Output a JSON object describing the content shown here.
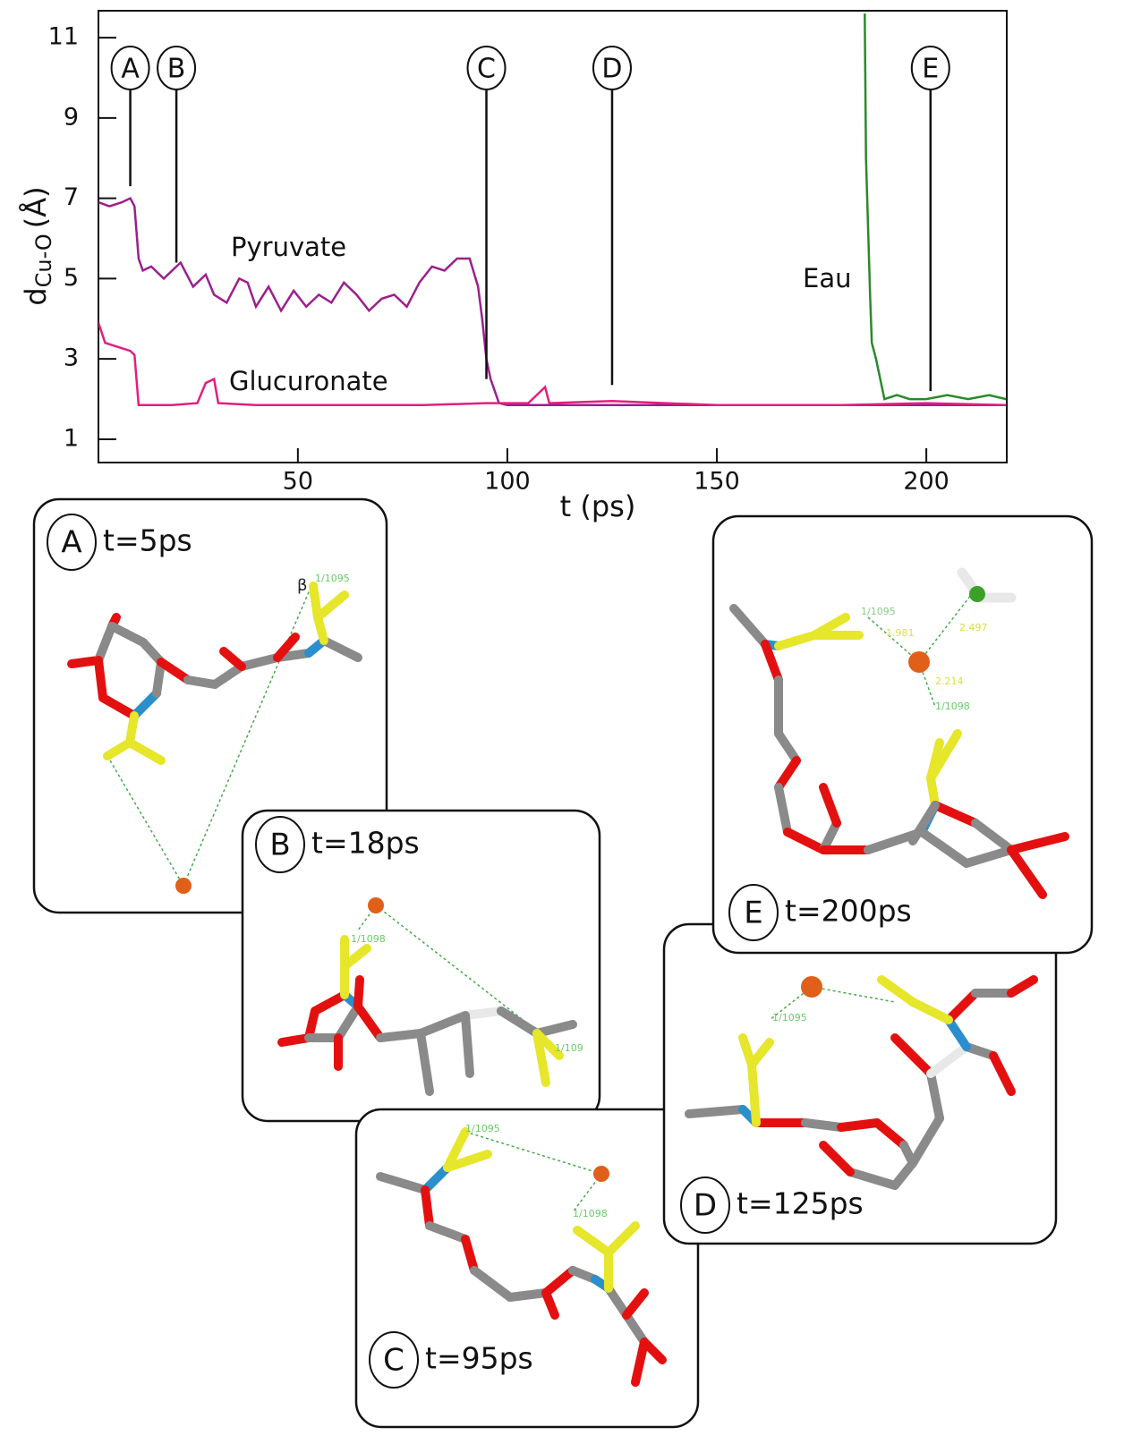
{
  "chart_data": {
    "type": "line",
    "y_label": "d",
    "y_label_sub": "Cu-O",
    "y_label_unit": "(Å)",
    "x_label": "t (ps)",
    "xlim": [
      2.4,
      219.2
    ],
    "ylim": [
      0.42,
      11.67
    ],
    "xticks": [
      50,
      100,
      150,
      200
    ],
    "yticks": [
      1,
      3,
      5,
      7,
      9,
      11
    ],
    "series": [
      {
        "name": "Pyruvate",
        "color": "#9c1f8c",
        "x": [
          2.4,
          5,
          8,
          10,
          11,
          12,
          13,
          15,
          18,
          20,
          22,
          25,
          28,
          30,
          33,
          36,
          38,
          40,
          43,
          46,
          49,
          52,
          55,
          58,
          61,
          64,
          67,
          70,
          73,
          76,
          79,
          82,
          85,
          88,
          91,
          93,
          94,
          95,
          96,
          98,
          100,
          120,
          150,
          180,
          219
        ],
        "values": [
          6.9,
          6.8,
          6.9,
          7.0,
          6.8,
          5.5,
          5.2,
          5.3,
          5.0,
          5.2,
          5.4,
          4.8,
          5.1,
          4.6,
          4.4,
          5.0,
          4.9,
          4.3,
          4.8,
          4.2,
          4.7,
          4.3,
          4.6,
          4.4,
          4.9,
          4.6,
          4.2,
          4.5,
          4.6,
          4.3,
          4.9,
          5.3,
          5.2,
          5.5,
          5.5,
          4.8,
          4.0,
          3.0,
          2.5,
          1.9,
          1.85,
          1.85,
          1.85,
          1.85,
          1.85
        ]
      },
      {
        "name": "Glucuronate",
        "color": "#e0207f",
        "x": [
          2.4,
          4,
          7,
          10,
          11,
          12,
          20,
          26,
          28,
          30,
          31,
          40,
          60,
          80,
          95,
          105,
          108,
          109,
          110,
          125,
          150,
          180,
          200,
          219
        ],
        "values": [
          3.9,
          3.4,
          3.3,
          3.2,
          3.1,
          1.85,
          1.85,
          1.9,
          2.4,
          2.5,
          1.9,
          1.85,
          1.85,
          1.85,
          1.9,
          1.9,
          2.2,
          2.3,
          1.9,
          1.95,
          1.85,
          1.85,
          1.9,
          1.85
        ]
      },
      {
        "name": "Eau",
        "color": "#2a8a2a",
        "x": [
          185.3,
          185.6,
          186.6,
          187,
          188,
          189,
          190,
          193,
          196,
          200,
          205,
          210,
          215,
          219
        ],
        "values": [
          11.6,
          8.0,
          4.5,
          3.4,
          3.0,
          2.5,
          2.0,
          2.1,
          2.0,
          2.0,
          2.1,
          2.0,
          2.1,
          2.0
        ]
      }
    ],
    "markers": [
      {
        "label": "A",
        "x": 10,
        "y": 7.3
      },
      {
        "label": "B",
        "x": 21,
        "y": 5.4
      },
      {
        "label": "C",
        "x": 95,
        "y": 2.5
      },
      {
        "label": "D",
        "x": 125,
        "y": 2.35
      },
      {
        "label": "E",
        "x": 201,
        "y": 2.2
      }
    ]
  },
  "panels": [
    {
      "letter": "A",
      "time": "t=5ps",
      "labels": [
        "β",
        "1/1095"
      ]
    },
    {
      "letter": "B",
      "time": "t=18ps",
      "labels": [
        "1/1098",
        "1/109"
      ]
    },
    {
      "letter": "C",
      "time": "t=95ps",
      "labels": [
        "1/1095",
        "1/1098"
      ]
    },
    {
      "letter": "D",
      "time": "t=125ps",
      "labels": [
        "1/1095"
      ]
    },
    {
      "letter": "E",
      "time": "t=200ps",
      "labels": [
        "1/1095",
        "1.981",
        "2.497",
        "2.214",
        "1/1098"
      ]
    }
  ]
}
